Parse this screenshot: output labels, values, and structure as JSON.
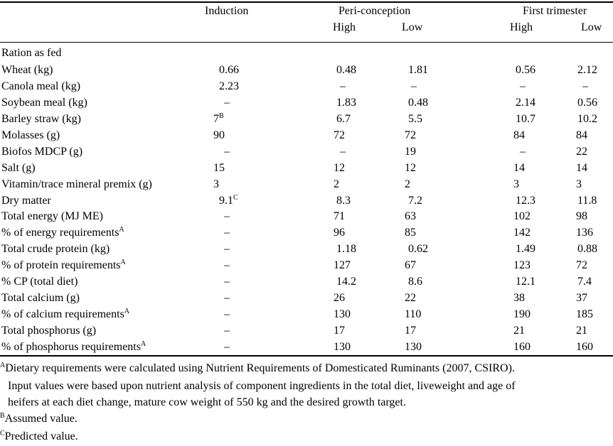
{
  "table": {
    "columns": {
      "induction": "Induction",
      "peri": "Peri-conception",
      "first": "First trimester",
      "high": "High",
      "low": "Low"
    },
    "section_label": "Ration as fed",
    "rows": [
      {
        "label": "Wheat (kg)",
        "sup": "",
        "v": [
          "0.66",
          "0.48",
          "1.81",
          "0.56",
          "2.12"
        ],
        "vsup": ""
      },
      {
        "label": "Canola meal (kg)",
        "sup": "",
        "v": [
          "2.23",
          "–",
          "–",
          "–",
          "–"
        ],
        "vsup": ""
      },
      {
        "label": "Soybean meal (kg)",
        "sup": "",
        "v": [
          "–",
          "1.83",
          "0.48",
          "2.14",
          "0.56"
        ],
        "vsup": ""
      },
      {
        "label": "Barley straw (kg)",
        "sup": "",
        "v": [
          "7",
          "6.7",
          "5.5",
          "10.7",
          "10.2"
        ],
        "vsup": "B"
      },
      {
        "label": "Molasses (g)",
        "sup": "",
        "v": [
          "90",
          "72",
          "72",
          "84",
          "84"
        ],
        "vsup": ""
      },
      {
        "label": "Biofos MDCP (g)",
        "sup": "",
        "v": [
          "–",
          "–",
          "19",
          "–",
          "22"
        ],
        "vsup": ""
      },
      {
        "label": "Salt (g)",
        "sup": "",
        "v": [
          "15",
          "12",
          "12",
          "14",
          "14"
        ],
        "vsup": ""
      },
      {
        "label": "Vitamin/trace mineral premix (g)",
        "sup": "",
        "v": [
          "3",
          "2",
          "2",
          "3",
          "3"
        ],
        "vsup": ""
      },
      {
        "label": "Dry matter",
        "sup": "",
        "v": [
          "9.1",
          "8.3",
          "7.2",
          "12.3",
          "11.8"
        ],
        "vsup": "C"
      },
      {
        "label": "Total energy (MJ ME)",
        "sup": "",
        "v": [
          "–",
          "71",
          "63",
          "102",
          "98"
        ],
        "vsup": ""
      },
      {
        "label": "% of energy requirements",
        "sup": "A",
        "v": [
          "–",
          "96",
          "85",
          "142",
          "136"
        ],
        "vsup": ""
      },
      {
        "label": "Total crude protein (kg)",
        "sup": "",
        "v": [
          "–",
          "1.18",
          "0.62",
          "1.49",
          "0.88"
        ],
        "vsup": ""
      },
      {
        "label": "% of protein requirements",
        "sup": "A",
        "v": [
          "–",
          "127",
          "67",
          "123",
          "72"
        ],
        "vsup": ""
      },
      {
        "label": "% CP (total diet)",
        "sup": "",
        "v": [
          "–",
          "14.2",
          "8.6",
          "12.1",
          "7.4"
        ],
        "vsup": ""
      },
      {
        "label": "Total calcium (g)",
        "sup": "",
        "v": [
          "–",
          "26",
          "22",
          "38",
          "37"
        ],
        "vsup": ""
      },
      {
        "label": "% of calcium requirements",
        "sup": "A",
        "v": [
          "–",
          "130",
          "110",
          "190",
          "185"
        ],
        "vsup": ""
      },
      {
        "label": "Total phosphorus (g)",
        "sup": "",
        "v": [
          "–",
          "17",
          "17",
          "21",
          "21"
        ],
        "vsup": ""
      },
      {
        "label": "% of phosphorus requirements",
        "sup": "A",
        "v": [
          "–",
          "130",
          "130",
          "160",
          "160"
        ],
        "vsup": ""
      }
    ]
  },
  "footnotes": {
    "a_mark": "A",
    "a_line1": "Dietary requirements were calculated using Nutrient Requirements of Domesticated Ruminants (2007, CSIRO).",
    "a_line2": "Input values were based upon nutrient analysis of component ingredients in the total diet, liveweight and age of",
    "a_line3": "heifers at each diet change, mature cow weight of 550 kg and the desired growth target.",
    "b_mark": "B",
    "b_text": "Assumed value.",
    "c_mark": "C",
    "c_text": "Predicted value."
  }
}
